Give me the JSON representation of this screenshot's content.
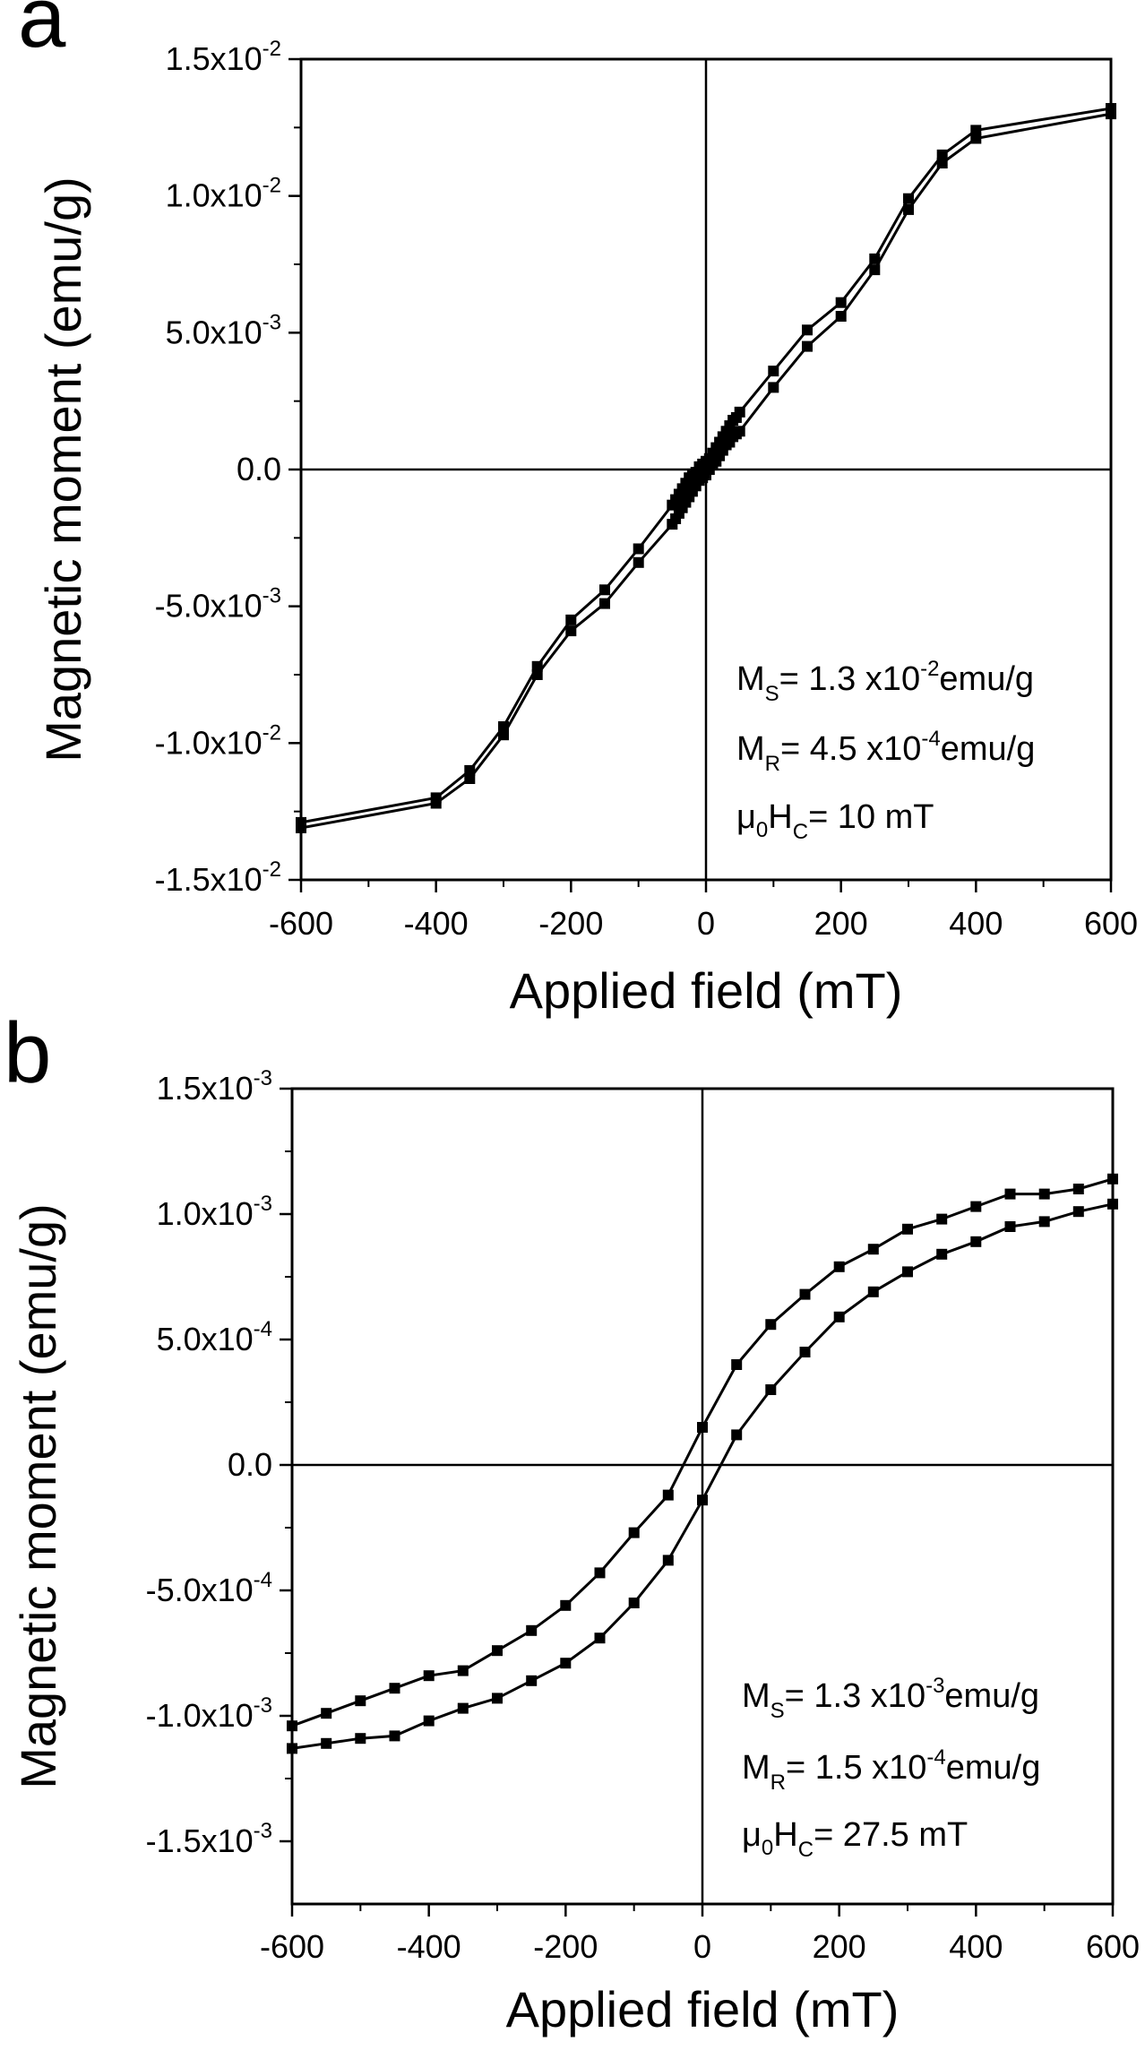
{
  "chart_data": [
    {
      "type": "line",
      "panel_label": "a",
      "xlabel": "Applied field (mT)",
      "ylabel": "Magnetic moment (emu/g)",
      "xlim": [
        -600,
        600
      ],
      "ylim": [
        -0.015,
        0.015
      ],
      "xticks": [
        "-600",
        "-400",
        "-200",
        "0",
        "200",
        "400",
        "600"
      ],
      "yticks": [
        {
          "mant": "1.5x10",
          "exp": "-2",
          "plain": ""
        },
        {
          "mant": "1.0x10",
          "exp": "-2",
          "plain": ""
        },
        {
          "mant": "5.0x10",
          "exp": "-3",
          "plain": ""
        },
        {
          "mant": "",
          "exp": "",
          "plain": "0.0"
        },
        {
          "mant": "-5.0x10",
          "exp": "-3",
          "plain": ""
        },
        {
          "mant": "-1.0x10",
          "exp": "-2",
          "plain": ""
        },
        {
          "mant": "-1.5x10",
          "exp": "-2",
          "plain": ""
        }
      ],
      "annotations": [
        {
          "pre": "M",
          "sub": "S",
          "mid": "= 1.3 x10",
          "sup": "-2",
          "post": "emu/g"
        },
        {
          "pre": "M",
          "sub": "R",
          "mid": "= 4.5 x10",
          "sup": "-4",
          "post": "emu/g"
        },
        {
          "pre": "μ",
          "sub0": "0",
          "pre2": "H",
          "sub": "C",
          "mid": "= 10 mT",
          "sup": "",
          "post": ""
        }
      ],
      "series": [
        {
          "name": "upper branch",
          "x": [
            -600,
            -400,
            -350,
            -300,
            -250,
            -200,
            -150,
            -100,
            -50,
            -45,
            -40,
            -35,
            -30,
            -25,
            -20,
            -15,
            -10,
            -5,
            0,
            5,
            10,
            15,
            20,
            25,
            30,
            35,
            40,
            45,
            50,
            100,
            150,
            200,
            250,
            300,
            350,
            400,
            600
          ],
          "y": [
            -0.0129,
            -0.012,
            -0.011,
            -0.0094,
            -0.0072,
            -0.0055,
            -0.0044,
            -0.0029,
            -0.0013,
            -0.0011,
            -0.0009,
            -0.0007,
            -0.0005,
            -0.0003,
            -0.0002,
            -0.0001,
            0.0001,
            0.0002,
            0.0003,
            0.0004,
            0.0006,
            0.0008,
            0.001,
            0.0012,
            0.0014,
            0.0016,
            0.0018,
            0.0019,
            0.0021,
            0.0036,
            0.0051,
            0.0061,
            0.0077,
            0.0099,
            0.0115,
            0.0124,
            0.0132
          ]
        },
        {
          "name": "lower branch",
          "x": [
            -600,
            -400,
            -350,
            -300,
            -250,
            -200,
            -150,
            -100,
            -50,
            -45,
            -40,
            -35,
            -30,
            -25,
            -20,
            -15,
            -10,
            -5,
            0,
            5,
            10,
            15,
            20,
            25,
            30,
            35,
            40,
            45,
            50,
            100,
            150,
            200,
            250,
            300,
            350,
            400,
            600
          ],
          "y": [
            -0.0131,
            -0.0122,
            -0.0113,
            -0.0097,
            -0.0075,
            -0.0059,
            -0.0049,
            -0.0034,
            -0.002,
            -0.0018,
            -0.0016,
            -0.0014,
            -0.0012,
            -0.001,
            -0.0008,
            -0.0006,
            -0.0004,
            -0.0003,
            -0.0002,
            0.0,
            0.0002,
            0.0003,
            0.0005,
            0.0007,
            0.0009,
            0.001,
            0.0012,
            0.0013,
            0.0014,
            0.003,
            0.0045,
            0.0056,
            0.0073,
            0.0095,
            0.0112,
            0.0121,
            0.013
          ]
        }
      ]
    },
    {
      "type": "line",
      "panel_label": "b",
      "xlabel": "Applied field (mT)",
      "ylabel": "Magnetic moment (emu/g)",
      "xlim": [
        -600,
        600
      ],
      "ylim": [
        -0.00175,
        0.0015
      ],
      "xticks": [
        "-600",
        "-400",
        "-200",
        "0",
        "200",
        "400",
        "600"
      ],
      "yticks": [
        {
          "mant": "1.5x10",
          "exp": "-3",
          "plain": ""
        },
        {
          "mant": "1.0x10",
          "exp": "-3",
          "plain": ""
        },
        {
          "mant": "5.0x10",
          "exp": "-4",
          "plain": ""
        },
        {
          "mant": "",
          "exp": "",
          "plain": "0.0"
        },
        {
          "mant": "-5.0x10",
          "exp": "-4",
          "plain": ""
        },
        {
          "mant": "-1.0x10",
          "exp": "-3",
          "plain": ""
        },
        {
          "mant": "-1.5x10",
          "exp": "-3",
          "plain": ""
        }
      ],
      "annotations": [
        {
          "pre": "M",
          "sub": "S",
          "mid": "= 1.3 x10",
          "sup": "-3",
          "post": "emu/g"
        },
        {
          "pre": "M",
          "sub": "R",
          "mid": "= 1.5 x10",
          "sup": "-4",
          "post": "emu/g"
        },
        {
          "pre": "μ",
          "sub0": "0",
          "pre2": "H",
          "sub": "C",
          "mid": "= 27.5 mT",
          "sup": "",
          "post": ""
        }
      ],
      "series": [
        {
          "name": "upper branch",
          "x": [
            -600,
            -550,
            -500,
            -450,
            -400,
            -350,
            -300,
            -250,
            -200,
            -150,
            -100,
            -50,
            0,
            50,
            100,
            150,
            200,
            250,
            300,
            350,
            400,
            450,
            500,
            550,
            600
          ],
          "y": [
            -0.00104,
            -0.00099,
            -0.00094,
            -0.00089,
            -0.00084,
            -0.00082,
            -0.00074,
            -0.00066,
            -0.00056,
            -0.00043,
            -0.00027,
            -0.00012,
            0.00015,
            0.0004,
            0.00056,
            0.00068,
            0.00079,
            0.00086,
            0.00094,
            0.00098,
            0.00103,
            0.00108,
            0.00108,
            0.0011,
            0.00114
          ]
        },
        {
          "name": "lower branch",
          "x": [
            -600,
            -550,
            -500,
            -450,
            -400,
            -350,
            -300,
            -250,
            -200,
            -150,
            -100,
            -50,
            0,
            50,
            100,
            150,
            200,
            250,
            300,
            350,
            400,
            450,
            500,
            550,
            600
          ],
          "y": [
            -0.00113,
            -0.00111,
            -0.00109,
            -0.00108,
            -0.00102,
            -0.00097,
            -0.00093,
            -0.00086,
            -0.00079,
            -0.00069,
            -0.00055,
            -0.00038,
            -0.00014,
            0.00012,
            0.0003,
            0.00045,
            0.00059,
            0.00069,
            0.00077,
            0.00084,
            0.00089,
            0.00095,
            0.00097,
            0.00101,
            0.00104
          ]
        }
      ]
    }
  ]
}
